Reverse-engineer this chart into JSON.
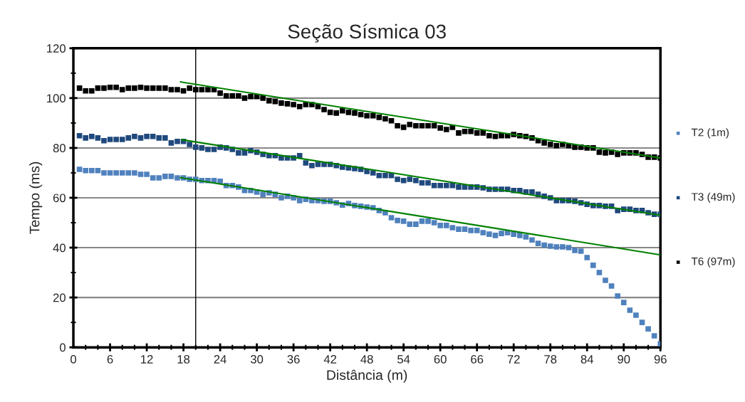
{
  "chart_data": {
    "type": "scatter",
    "title": "Seção Sísmica 03",
    "xlabel": "Distância (m)",
    "ylabel": "Tempo (ms)",
    "x": [
      1,
      2,
      3,
      4,
      5,
      6,
      7,
      8,
      9,
      10,
      11,
      12,
      13,
      14,
      15,
      16,
      17,
      18,
      19,
      20,
      21,
      22,
      23,
      24,
      25,
      26,
      27,
      28,
      29,
      30,
      31,
      32,
      33,
      34,
      35,
      36,
      37,
      38,
      39,
      40,
      41,
      42,
      43,
      44,
      45,
      46,
      47,
      48,
      49,
      50,
      51,
      52,
      53,
      54,
      55,
      56,
      57,
      58,
      59,
      60,
      61,
      62,
      63,
      64,
      65,
      66,
      67,
      68,
      69,
      70,
      71,
      72,
      73,
      74,
      75,
      76,
      77,
      78,
      79,
      80,
      81,
      82,
      83,
      84,
      85,
      86,
      87,
      88,
      89,
      90,
      91,
      92,
      93,
      94,
      95,
      96
    ],
    "series": [
      {
        "name": "T2 (1m)",
        "color": "#4f81bd",
        "values": [
          71.4,
          70.9,
          70.9,
          70.9,
          70,
          70,
          70,
          70,
          70,
          70,
          69.4,
          69.4,
          68,
          68,
          68.6,
          68.6,
          68,
          68,
          67.4,
          67.4,
          66.9,
          66.9,
          66.9,
          66.6,
          64.9,
          64.9,
          64.3,
          62.9,
          62.9,
          62.3,
          61.4,
          62,
          61.4,
          60,
          60.6,
          60,
          58.9,
          59.4,
          58.9,
          58.9,
          58.6,
          58.6,
          58,
          57.1,
          57.7,
          56.9,
          56.6,
          56.3,
          56,
          54.9,
          54,
          52,
          50.9,
          50.6,
          49.4,
          49.4,
          50.6,
          50.6,
          50,
          48.9,
          48.9,
          48,
          47.4,
          47.4,
          46.9,
          46.9,
          46,
          45.4,
          44.9,
          45.7,
          46,
          45.4,
          44.9,
          44.3,
          43.1,
          41.7,
          41,
          40.6,
          40.3,
          40.3,
          40,
          38.9,
          38.6,
          36,
          32.9,
          30,
          26.9,
          24.6,
          20.6,
          18,
          14.9,
          12.9,
          10,
          7.4,
          4.6,
          1.4
        ]
      },
      {
        "name": "T3 (49m)",
        "color": "#1f497d",
        "values": [
          84.9,
          84,
          84.6,
          84,
          82.9,
          83.4,
          83.4,
          83.4,
          84,
          84.6,
          84,
          84.6,
          84.6,
          84,
          84,
          82,
          82.6,
          82.6,
          81.4,
          80.3,
          80,
          79.4,
          79.4,
          80.3,
          80,
          79.4,
          78,
          78,
          78.9,
          78.3,
          77.4,
          76.9,
          76.9,
          76,
          76,
          76,
          76.9,
          74,
          72.9,
          73.4,
          73.4,
          73.4,
          72.9,
          72.3,
          72,
          71.7,
          71.4,
          70.6,
          70,
          68.9,
          68.9,
          68.9,
          67.4,
          66.9,
          67.4,
          66.9,
          66,
          66,
          64.9,
          64.9,
          64.9,
          64.9,
          64.3,
          64.3,
          64.3,
          64.3,
          64,
          63.4,
          63.4,
          63.4,
          63.4,
          62.9,
          62.9,
          62.3,
          62.3,
          61.4,
          60.6,
          60,
          58.9,
          58.9,
          58.9,
          58.6,
          58,
          57.4,
          56.9,
          56.9,
          56.6,
          56.6,
          54.9,
          55.4,
          55.4,
          54.9,
          54.9,
          54,
          53.4,
          53.4
        ]
      },
      {
        "name": "T6 (97m)",
        "color": "#000000",
        "values": [
          104,
          102.9,
          102.9,
          104,
          104,
          104.3,
          104.3,
          103.4,
          104,
          104,
          104.3,
          104,
          104,
          104,
          104,
          103.4,
          103.4,
          102.9,
          104,
          103.4,
          103.4,
          103.4,
          103.4,
          102,
          100.9,
          100.9,
          100.9,
          100,
          100.6,
          100.6,
          100,
          98.9,
          98.6,
          98,
          97.7,
          97.4,
          96.6,
          97.4,
          97.4,
          96.6,
          95.4,
          94.3,
          94,
          94.9,
          94.3,
          94,
          93.4,
          92.9,
          92.9,
          92.3,
          91.7,
          90.9,
          88.9,
          88.3,
          89.4,
          88.9,
          88.9,
          88.9,
          88.9,
          88,
          87.4,
          88.3,
          86,
          86.6,
          86.6,
          86,
          86,
          84.9,
          84.6,
          84.9,
          84.9,
          85.4,
          84.9,
          84.6,
          84,
          82.9,
          82,
          81.4,
          80.9,
          81.4,
          80.9,
          80.3,
          80.3,
          80,
          80,
          78.3,
          78,
          78.3,
          77.4,
          78,
          78,
          78,
          77.4,
          76.3,
          76.3,
          76
        ]
      },
      {
        "type": "line",
        "color": "#008000",
        "marker": "none",
        "x": [
          17.5,
          96
        ],
        "values": [
          68.1,
          37.1
        ]
      },
      {
        "type": "line",
        "color": "#008000",
        "marker": "none",
        "x": [
          17.7,
          96
        ],
        "values": [
          83.3,
          53
        ]
      },
      {
        "type": "line",
        "color": "#008000",
        "marker": "none",
        "x": [
          17.5,
          96
        ],
        "values": [
          106.5,
          76
        ]
      }
    ],
    "marker": "square",
    "ref_lines": [
      {
        "axis": "x",
        "value": 20,
        "color": "#000000"
      }
    ],
    "xlim": [
      0,
      96
    ],
    "xticks": [
      0,
      {
        "value": 2,
        "label": null
      },
      {
        "value": 4,
        "label": null
      },
      6,
      {
        "value": 8,
        "label": null
      },
      {
        "value": 10,
        "label": null
      },
      12,
      {
        "value": 14,
        "label": null
      },
      {
        "value": 16,
        "label": null
      },
      18,
      {
        "value": 20,
        "label": null
      },
      {
        "value": 22,
        "label": null
      },
      24,
      {
        "value": 26,
        "label": null
      },
      {
        "value": 28,
        "label": null
      },
      30,
      {
        "value": 32,
        "label": null
      },
      {
        "value": 34,
        "label": null
      },
      36,
      {
        "value": 38,
        "label": null
      },
      {
        "value": 40,
        "label": null
      },
      42,
      {
        "value": 44,
        "label": null
      },
      {
        "value": 46,
        "label": null
      },
      48,
      {
        "value": 50,
        "label": null
      },
      {
        "value": 52,
        "label": null
      },
      54,
      {
        "value": 56,
        "label": null
      },
      {
        "value": 58,
        "label": null
      },
      60,
      {
        "value": 62,
        "label": null
      },
      {
        "value": 64,
        "label": null
      },
      66,
      {
        "value": 68,
        "label": null
      },
      {
        "value": 70,
        "label": null
      },
      72,
      {
        "value": 74,
        "label": null
      },
      {
        "value": 76,
        "label": null
      },
      78,
      {
        "value": 80,
        "label": null
      },
      {
        "value": 82,
        "label": null
      },
      84,
      {
        "value": 86,
        "label": null
      },
      {
        "value": 88,
        "label": null
      },
      90,
      {
        "value": 92,
        "label": null
      },
      {
        "value": 94,
        "label": null
      },
      96
    ],
    "ylim": [
      0,
      120
    ],
    "yticks": [
      0,
      {
        "value": 10,
        "label": null
      },
      20,
      {
        "value": 30,
        "label": null
      },
      40,
      {
        "value": 50,
        "label": null
      },
      60,
      {
        "value": 70,
        "label": null
      },
      80,
      {
        "value": 90,
        "label": null
      },
      100,
      {
        "value": 110,
        "label": null
      },
      120
    ],
    "grid": "y",
    "legend": "right"
  }
}
